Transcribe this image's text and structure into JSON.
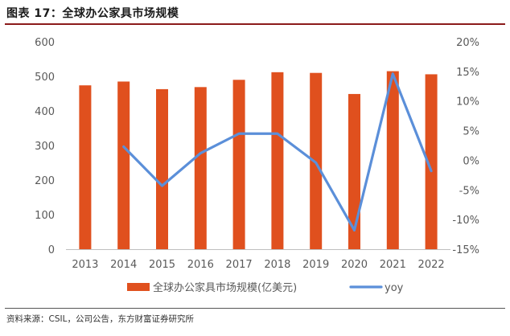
{
  "header": {
    "title": "图表 17：全球办公家具市场规模"
  },
  "footer": {
    "source": "资料来源：CSIL，公司公告，东方财富证券研究所"
  },
  "colors": {
    "bar": "#E0501E",
    "line": "#5B8FD9",
    "title_rule": "#8B1A1A"
  },
  "chart_data": {
    "type": "bar",
    "categories": [
      "2013",
      "2014",
      "2015",
      "2016",
      "2017",
      "2018",
      "2019",
      "2020",
      "2021",
      "2022"
    ],
    "series": [
      {
        "name": "全球办公家具市场规模(亿美元)",
        "type": "bar",
        "axis": "left",
        "values": [
          474,
          485,
          463,
          469,
          490,
          512,
          510,
          449,
          515,
          506
        ]
      },
      {
        "name": "yoy",
        "type": "line",
        "axis": "right",
        "values": [
          null,
          2.3,
          -4.3,
          1.2,
          4.5,
          4.5,
          -0.4,
          -11.8,
          14.6,
          -1.8
        ]
      }
    ],
    "y_left": {
      "min": 0,
      "max": 600,
      "ticks": [
        "0",
        "100",
        "200",
        "300",
        "400",
        "500",
        "600"
      ]
    },
    "y_right": {
      "min": -15,
      "max": 20,
      "ticks": [
        "-15%",
        "-10%",
        "-5%",
        "0%",
        "5%",
        "10%",
        "15%",
        "20%"
      ]
    },
    "legend_position": "bottom",
    "grid": false
  }
}
